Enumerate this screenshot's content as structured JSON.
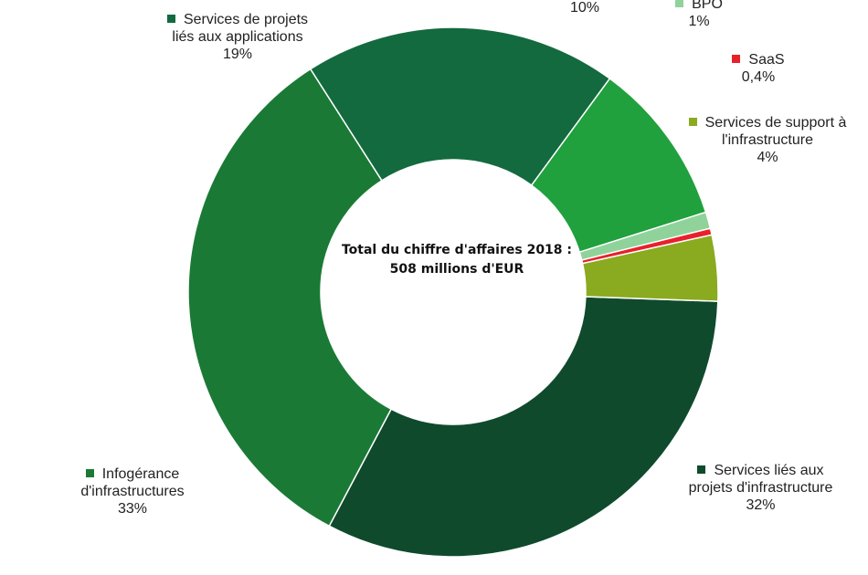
{
  "chart_data": {
    "type": "pie",
    "subtype": "donut",
    "center_label": {
      "line1": "Total du chiffre d'affaires 2018 :",
      "line2": "508 millions d'EUR"
    },
    "slices": [
      {
        "label_lines": [
          "Services liés aux",
          "projets d'infrastructure"
        ],
        "value_label": "32%",
        "value": 32,
        "color": "#0f4a2c"
      },
      {
        "label_lines": [
          "Infogérance",
          "d'infrastructures"
        ],
        "value_label": "33%",
        "value": 33,
        "color": "#1a7a35"
      },
      {
        "label_lines": [
          "Services de projets",
          "liés aux applications"
        ],
        "value_label": "19%",
        "value": 19,
        "color": "#136a3f"
      },
      {
        "label_lines": [],
        "value_label": "10%",
        "value": 10,
        "color": "#21a03e"
      },
      {
        "label_lines": [
          "BPO"
        ],
        "value_label": "1%",
        "value": 1,
        "color": "#8fd39a"
      },
      {
        "label_lines": [
          "SaaS"
        ],
        "value_label": "0,4%",
        "value": 0.4,
        "color": "#e8202c"
      },
      {
        "label_lines": [
          "Services de support à",
          "l'infrastructure"
        ],
        "value_label": "4%",
        "value": 4,
        "color": "#8aaa20"
      }
    ]
  }
}
